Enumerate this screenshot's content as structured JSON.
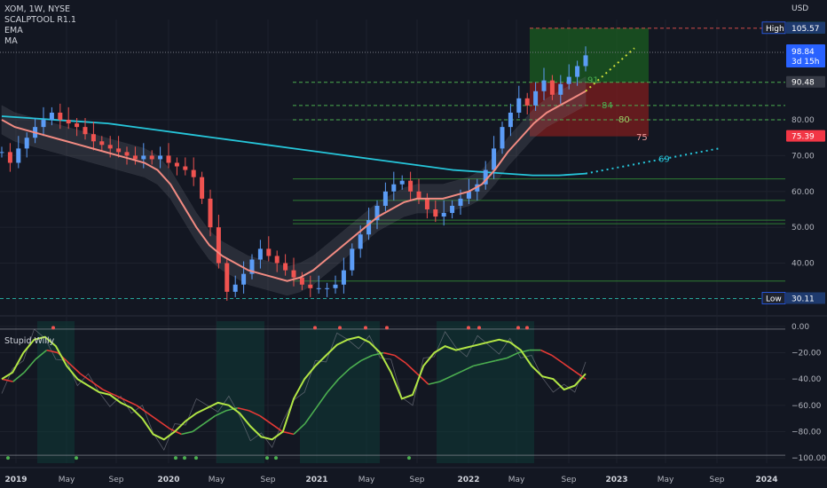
{
  "header": {
    "symbol": "XOM, 1W, NYSE",
    "indicators": [
      "SCALPTOOL R1.1",
      "EMA",
      "MA"
    ],
    "currency": "USD"
  },
  "oscillator_title": "Stupid Willy",
  "colors": {
    "background": "#131722",
    "up": "#5b9cf6",
    "down": "#ef5350",
    "ema": "#f28b82",
    "ma": "#26c6da",
    "osc_fast": "#b2e645",
    "osc_slow_up": "#4caf50",
    "osc_slow_down": "#e53935",
    "green_zone": "#1b5e20",
    "red_zone": "#7f1d1d"
  },
  "chart_data": [
    {
      "type": "candlestick",
      "x_ticks": [
        "2019",
        "May",
        "Sep",
        "2020",
        "May",
        "Sep",
        "2021",
        "May",
        "Sep",
        "2022",
        "May",
        "Sep",
        "2023",
        "May",
        "Sep",
        "2024"
      ],
      "y_ticks": [
        40,
        50,
        60,
        70,
        80
      ],
      "ylim": [
        28,
        108
      ],
      "high_label": "High",
      "high_value": "105.57",
      "low_label": "Low",
      "low_value": "30.11",
      "last_price": "98.84",
      "countdown": "3d 15h",
      "price_tags": [
        {
          "value": 105.57,
          "text": "105.57",
          "color": "#089981"
        },
        {
          "value": 90.48,
          "text": "90.48",
          "color": "#363a45"
        },
        {
          "value": 75.39,
          "text": "75.39",
          "color": "#f23645"
        }
      ],
      "target_labels": [
        {
          "value": 91,
          "text": "91",
          "color": "#4caf50"
        },
        {
          "value": 84,
          "text": "84",
          "color": "#4caf50"
        },
        {
          "value": 80,
          "text": "80",
          "color": "#9ccc65"
        },
        {
          "value": 75,
          "text": "75",
          "color": "#ef9a9a"
        },
        {
          "value": 69,
          "text": "69",
          "color": "#26c6da"
        }
      ],
      "horizontal_levels": [
        98.84,
        90.48,
        84,
        80,
        63.5,
        57.5,
        52,
        51,
        35,
        30.11
      ],
      "price_path_weekly_close": [
        71,
        68,
        72,
        75,
        78,
        80,
        82,
        80,
        79,
        78,
        76,
        74,
        73,
        72,
        71,
        70,
        69,
        70,
        69,
        70,
        68,
        67,
        66,
        64,
        58,
        50,
        40,
        32,
        34,
        37,
        41,
        44,
        42,
        40,
        38,
        36,
        34,
        33,
        33,
        33,
        34,
        38,
        44,
        48,
        52,
        56,
        60,
        62,
        63,
        60,
        58,
        55,
        53,
        54,
        56,
        58,
        60,
        62,
        66,
        72,
        78,
        82,
        86,
        84,
        88,
        91,
        87,
        90,
        92,
        95,
        98
      ],
      "ema_path": [
        80,
        78,
        77,
        76,
        75,
        74,
        73,
        72,
        71,
        70,
        69,
        68,
        66,
        62,
        56,
        50,
        45,
        42,
        40,
        38,
        37,
        36,
        35,
        36,
        38,
        41,
        44,
        47,
        50,
        53,
        55,
        57,
        58,
        58,
        58,
        59,
        60,
        62,
        66,
        71,
        75,
        79,
        82,
        84,
        86,
        88
      ],
      "ma_path": [
        81,
        80.5,
        80,
        79.5,
        79,
        78,
        77,
        76,
        75,
        74,
        73,
        72,
        71,
        70,
        69,
        68,
        67,
        66,
        65.5,
        65,
        64.5,
        64.5,
        65
      ]
    },
    {
      "type": "line",
      "title": "Stupid Willy",
      "y_ticks": [
        0,
        -20,
        -40,
        -60,
        -80,
        -100
      ],
      "ylim": [
        -104,
        4
      ],
      "fast_line": [
        -40,
        -35,
        -20,
        -10,
        -8,
        -15,
        -30,
        -40,
        -45,
        -50,
        -52,
        -58,
        -62,
        -70,
        -82,
        -86,
        -80,
        -72,
        -66,
        -62,
        -58,
        -60,
        -66,
        -76,
        -84,
        -86,
        -80,
        -55,
        -40,
        -30,
        -22,
        -14,
        -10,
        -8,
        -12,
        -20,
        -35,
        -55,
        -52,
        -30,
        -20,
        -15,
        -18,
        -16,
        -14,
        -12,
        -10,
        -12,
        -18,
        -30,
        -38,
        -40,
        -48,
        -45,
        -36
      ],
      "slow_line": [
        -40,
        -42,
        -35,
        -25,
        -18,
        -20,
        -28,
        -36,
        -42,
        -48,
        -52,
        -56,
        -60,
        -66,
        -72,
        -78,
        -82,
        -80,
        -74,
        -68,
        -64,
        -62,
        -64,
        -68,
        -74,
        -80,
        -82,
        -74,
        -62,
        -50,
        -40,
        -32,
        -26,
        -22,
        -20,
        -22,
        -28,
        -36,
        -44,
        -42,
        -38,
        -34,
        -30,
        -28,
        -26,
        -24,
        -20,
        -18,
        -18,
        -22,
        -28,
        -34,
        -40
      ]
    }
  ]
}
